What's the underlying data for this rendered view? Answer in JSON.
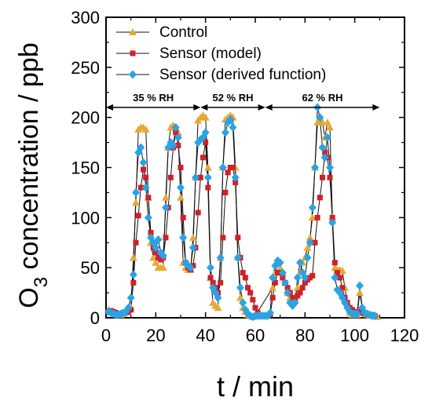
{
  "chart_data": {
    "type": "line",
    "xlabel": "t / min",
    "ylabel_main": "O",
    "ylabel_sub": "3",
    "ylabel_rest": " concentration / ppb",
    "xlim": [
      0,
      120
    ],
    "ylim": [
      0,
      300
    ],
    "xticks": [
      0,
      20,
      40,
      60,
      80,
      100,
      120
    ],
    "yticks": [
      0,
      50,
      100,
      150,
      200,
      250,
      300
    ],
    "grid": false,
    "legend_position": "top-left",
    "annotations": [
      {
        "text": "35 % RH",
        "x_start": 0,
        "x_end": 38,
        "y": 210
      },
      {
        "text": "52 % RH",
        "x_start": 38,
        "x_end": 64,
        "y": 210
      },
      {
        "text": "62 % RH",
        "x_start": 64,
        "x_end": 110,
        "y": 210
      }
    ],
    "series": [
      {
        "name": "Control",
        "color": "#E5A935",
        "marker": "triangle",
        "points": [
          [
            1,
            8
          ],
          [
            2,
            6
          ],
          [
            3,
            5
          ],
          [
            4,
            4
          ],
          [
            5,
            3
          ],
          [
            6,
            3
          ],
          [
            7,
            4
          ],
          [
            8,
            6
          ],
          [
            9,
            8
          ],
          [
            10,
            10
          ],
          [
            11,
            60
          ],
          [
            12,
            115
          ],
          [
            13,
            188
          ],
          [
            14,
            190
          ],
          [
            15,
            190
          ],
          [
            16,
            188
          ],
          [
            17,
            120
          ],
          [
            18,
            75
          ],
          [
            19,
            60
          ],
          [
            20,
            55
          ],
          [
            21,
            50
          ],
          [
            22,
            50
          ],
          [
            23,
            50
          ],
          [
            24,
            120
          ],
          [
            25,
            170
          ],
          [
            26,
            190
          ],
          [
            27,
            192
          ],
          [
            28,
            190
          ],
          [
            29,
            185
          ],
          [
            30,
            120
          ],
          [
            31,
            55
          ],
          [
            32,
            50
          ],
          [
            33,
            48
          ],
          [
            34,
            48
          ],
          [
            35,
            80
          ],
          [
            36,
            140
          ],
          [
            37,
            197
          ],
          [
            38,
            200
          ],
          [
            39,
            202
          ],
          [
            40,
            200
          ],
          [
            41,
            150
          ],
          [
            42,
            40
          ],
          [
            43,
            15
          ],
          [
            44,
            12
          ],
          [
            45,
            10
          ],
          [
            46,
            60
          ],
          [
            47,
            150
          ],
          [
            48,
            198
          ],
          [
            49,
            200
          ],
          [
            50,
            202
          ],
          [
            51,
            200
          ],
          [
            52,
            150
          ],
          [
            53,
            60
          ],
          [
            54,
            20
          ],
          [
            55,
            10
          ],
          [
            56,
            6
          ],
          [
            57,
            3
          ],
          [
            58,
            2
          ],
          [
            59,
            1
          ],
          [
            60,
            2
          ],
          [
            67,
            30
          ],
          [
            68,
            45
          ],
          [
            69,
            55
          ],
          [
            70,
            50
          ],
          [
            71,
            45
          ],
          [
            72,
            35
          ],
          [
            73,
            25
          ],
          [
            74,
            20
          ],
          [
            75,
            18
          ],
          [
            76,
            20
          ],
          [
            77,
            30
          ],
          [
            78,
            45
          ],
          [
            79,
            55
          ],
          [
            80,
            60
          ],
          [
            81,
            70
          ],
          [
            82,
            80
          ],
          [
            83,
            100
          ],
          [
            84,
            150
          ],
          [
            85,
            195
          ],
          [
            86,
            200
          ],
          [
            87,
            195
          ],
          [
            88,
            180
          ],
          [
            89,
            195
          ],
          [
            90,
            190
          ],
          [
            91,
            100
          ],
          [
            92,
            50
          ],
          [
            93,
            48
          ],
          [
            94,
            48
          ],
          [
            95,
            47
          ],
          [
            96,
            30
          ],
          [
            97,
            15
          ],
          [
            98,
            5
          ],
          [
            99,
            3
          ],
          [
            100,
            3
          ],
          [
            101,
            3
          ],
          [
            102,
            25
          ],
          [
            103,
            10
          ],
          [
            104,
            5
          ],
          [
            105,
            3
          ],
          [
            106,
            2
          ],
          [
            107,
            2
          ],
          [
            108,
            2
          ],
          [
            109,
            1
          ]
        ]
      },
      {
        "name": "Sensor (model)",
        "color": "#D0202A",
        "marker": "square",
        "points": [
          [
            1,
            6
          ],
          [
            2,
            7
          ],
          [
            3,
            6
          ],
          [
            4,
            5
          ],
          [
            5,
            4
          ],
          [
            6,
            4
          ],
          [
            7,
            5
          ],
          [
            8,
            5
          ],
          [
            9,
            6
          ],
          [
            10,
            8
          ],
          [
            11,
            35
          ],
          [
            12,
            75
          ],
          [
            13,
            102
          ],
          [
            14,
            130
          ],
          [
            15,
            148
          ],
          [
            16,
            140
          ],
          [
            17,
            120
          ],
          [
            18,
            85
          ],
          [
            19,
            70
          ],
          [
            20,
            65
          ],
          [
            21,
            60
          ],
          [
            22,
            58
          ],
          [
            23,
            60
          ],
          [
            24,
            80
          ],
          [
            25,
            110
          ],
          [
            26,
            140
          ],
          [
            27,
            170
          ],
          [
            28,
            185
          ],
          [
            29,
            172
          ],
          [
            30,
            150
          ],
          [
            31,
            100
          ],
          [
            32,
            55
          ],
          [
            33,
            50
          ],
          [
            34,
            48
          ],
          [
            35,
            52
          ],
          [
            36,
            70
          ],
          [
            37,
            105
          ],
          [
            38,
            140
          ],
          [
            39,
            160
          ],
          [
            40,
            175
          ],
          [
            41,
            130
          ],
          [
            42,
            40
          ],
          [
            43,
            35
          ],
          [
            44,
            30
          ],
          [
            45,
            25
          ],
          [
            46,
            35
          ],
          [
            47,
            80
          ],
          [
            48,
            125
          ],
          [
            49,
            145
          ],
          [
            50,
            150
          ],
          [
            51,
            150
          ],
          [
            52,
            135
          ],
          [
            53,
            80
          ],
          [
            54,
            60
          ],
          [
            55,
            45
          ],
          [
            56,
            40
          ],
          [
            57,
            30
          ],
          [
            58,
            25
          ],
          [
            59,
            18
          ],
          [
            60,
            10
          ],
          [
            61,
            5
          ],
          [
            62,
            2
          ],
          [
            63,
            2
          ],
          [
            64,
            2
          ],
          [
            65,
            2
          ],
          [
            66,
            3
          ],
          [
            67,
            20
          ],
          [
            68,
            35
          ],
          [
            69,
            45
          ],
          [
            70,
            45
          ],
          [
            71,
            40
          ],
          [
            72,
            35
          ],
          [
            73,
            30
          ],
          [
            74,
            25
          ],
          [
            75,
            20
          ],
          [
            76,
            20
          ],
          [
            77,
            22
          ],
          [
            78,
            25
          ],
          [
            79,
            30
          ],
          [
            80,
            35
          ],
          [
            81,
            38
          ],
          [
            82,
            40
          ],
          [
            83,
            42
          ],
          [
            84,
            75
          ],
          [
            85,
            100
          ],
          [
            86,
            120
          ],
          [
            87,
            140
          ],
          [
            88,
            165
          ],
          [
            89,
            160
          ],
          [
            90,
            140
          ],
          [
            91,
            100
          ],
          [
            92,
            55
          ],
          [
            93,
            45
          ],
          [
            94,
            40
          ],
          [
            95,
            30
          ],
          [
            96,
            20
          ],
          [
            97,
            15
          ],
          [
            98,
            10
          ],
          [
            99,
            8
          ],
          [
            100,
            6
          ],
          [
            101,
            6
          ],
          [
            102,
            6
          ],
          [
            103,
            5
          ],
          [
            104,
            4
          ],
          [
            105,
            3
          ],
          [
            106,
            3
          ],
          [
            107,
            3
          ],
          [
            108,
            2
          ]
        ]
      },
      {
        "name": "Sensor (derived function)",
        "color": "#2AA3E6",
        "marker": "diamond",
        "points": [
          [
            1,
            6
          ],
          [
            2,
            5
          ],
          [
            3,
            4
          ],
          [
            4,
            3
          ],
          [
            5,
            3
          ],
          [
            6,
            4
          ],
          [
            7,
            5
          ],
          [
            8,
            6
          ],
          [
            9,
            10
          ],
          [
            10,
            20
          ],
          [
            11,
            43
          ],
          [
            12,
            125
          ],
          [
            13,
            165
          ],
          [
            14,
            170
          ],
          [
            15,
            155
          ],
          [
            16,
            130
          ],
          [
            17,
            100
          ],
          [
            18,
            80
          ],
          [
            19,
            75
          ],
          [
            20,
            70
          ],
          [
            21,
            78
          ],
          [
            22,
            65
          ],
          [
            23,
            62
          ],
          [
            24,
            110
          ],
          [
            25,
            170
          ],
          [
            26,
            175
          ],
          [
            27,
            172
          ],
          [
            28,
            190
          ],
          [
            29,
            180
          ],
          [
            30,
            130
          ],
          [
            31,
            80
          ],
          [
            32,
            55
          ],
          [
            33,
            52
          ],
          [
            34,
            50
          ],
          [
            35,
            70
          ],
          [
            36,
            140
          ],
          [
            37,
            175
          ],
          [
            38,
            178
          ],
          [
            39,
            180
          ],
          [
            40,
            185
          ],
          [
            41,
            140
          ],
          [
            42,
            50
          ],
          [
            43,
            30
          ],
          [
            44,
            25
          ],
          [
            45,
            20
          ],
          [
            46,
            60
          ],
          [
            47,
            150
          ],
          [
            48,
            185
          ],
          [
            49,
            195
          ],
          [
            50,
            198
          ],
          [
            51,
            190
          ],
          [
            52,
            140
          ],
          [
            53,
            60
          ],
          [
            54,
            30
          ],
          [
            55,
            15
          ],
          [
            56,
            8
          ],
          [
            57,
            4
          ],
          [
            58,
            2
          ],
          [
            59,
            1
          ],
          [
            60,
            2
          ],
          [
            61,
            2
          ],
          [
            62,
            2
          ],
          [
            63,
            2
          ],
          [
            64,
            2
          ],
          [
            65,
            2
          ],
          [
            66,
            5
          ],
          [
            67,
            40
          ],
          [
            68,
            52
          ],
          [
            69,
            57
          ],
          [
            70,
            55
          ],
          [
            71,
            45
          ],
          [
            72,
            35
          ],
          [
            73,
            25
          ],
          [
            74,
            15
          ],
          [
            75,
            12
          ],
          [
            76,
            15
          ],
          [
            77,
            40
          ],
          [
            78,
            55
          ],
          [
            79,
            45
          ],
          [
            80,
            40
          ],
          [
            81,
            60
          ],
          [
            82,
            75
          ],
          [
            83,
            110
          ],
          [
            84,
            150
          ],
          [
            85,
            210
          ],
          [
            86,
            200
          ],
          [
            87,
            170
          ],
          [
            88,
            160
          ],
          [
            89,
            180
          ],
          [
            90,
            150
          ],
          [
            91,
            95
          ],
          [
            92,
            40
          ],
          [
            93,
            28
          ],
          [
            94,
            25
          ],
          [
            95,
            20
          ],
          [
            96,
            15
          ],
          [
            97,
            10
          ],
          [
            98,
            6
          ],
          [
            99,
            4
          ],
          [
            100,
            4
          ],
          [
            101,
            4
          ],
          [
            102,
            32
          ],
          [
            103,
            10
          ],
          [
            104,
            5
          ],
          [
            105,
            4
          ],
          [
            106,
            3
          ],
          [
            107,
            2
          ],
          [
            108,
            2
          ]
        ]
      }
    ]
  }
}
